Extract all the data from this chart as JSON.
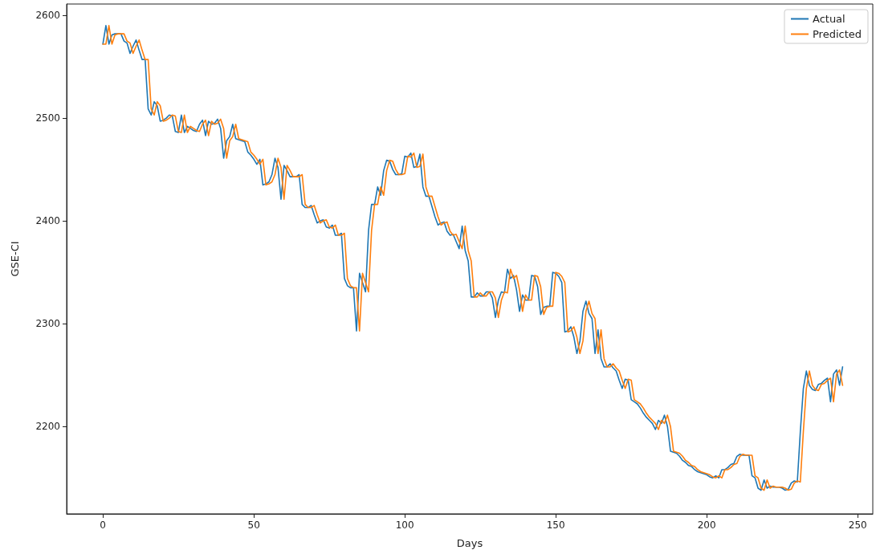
{
  "chart_data": {
    "type": "line",
    "xlabel": "Days",
    "ylabel": "GSE-CI",
    "x": [
      0,
      1,
      2,
      3,
      4,
      5,
      6,
      7,
      8,
      9,
      10,
      11,
      12,
      13,
      14,
      15,
      16,
      17,
      18,
      19,
      20,
      21,
      22,
      23,
      24,
      25,
      26,
      27,
      28,
      29,
      30,
      31,
      32,
      33,
      34,
      35,
      36,
      37,
      38,
      39,
      40,
      41,
      42,
      43,
      44,
      45,
      46,
      47,
      48,
      49,
      50,
      51,
      52,
      53,
      54,
      55,
      56,
      57,
      58,
      59,
      60,
      61,
      62,
      63,
      64,
      65,
      66,
      67,
      68,
      69,
      70,
      71,
      72,
      73,
      74,
      75,
      76,
      77,
      78,
      79,
      80,
      81,
      82,
      83,
      84,
      85,
      86,
      87,
      88,
      89,
      90,
      91,
      92,
      93,
      94,
      95,
      96,
      97,
      98,
      99,
      100,
      101,
      102,
      103,
      104,
      105,
      106,
      107,
      108,
      109,
      110,
      111,
      112,
      113,
      114,
      115,
      116,
      117,
      118,
      119,
      120,
      121,
      122,
      123,
      124,
      125,
      126,
      127,
      128,
      129,
      130,
      131,
      132,
      133,
      134,
      135,
      136,
      137,
      138,
      139,
      140,
      141,
      142,
      143,
      144,
      145,
      146,
      147,
      148,
      149,
      150,
      151,
      152,
      153,
      154,
      155,
      156,
      157,
      158,
      159,
      160,
      161,
      162,
      163,
      164,
      165,
      166,
      167,
      168,
      169,
      170,
      171,
      172,
      173,
      174,
      175,
      176,
      177,
      178,
      179,
      180,
      181,
      182,
      183,
      184,
      185,
      186,
      187,
      188,
      189,
      190,
      191,
      192,
      193,
      194,
      195,
      196,
      197,
      198,
      199,
      200,
      201,
      202,
      203,
      204,
      205,
      206,
      207,
      208,
      209,
      210,
      211,
      212,
      213,
      214,
      215,
      216,
      217,
      218,
      219,
      220,
      221,
      222,
      223,
      224,
      225,
      226,
      227,
      228,
      229,
      230,
      231,
      232,
      233,
      234,
      235,
      236,
      237,
      238,
      239,
      240,
      241,
      242,
      243,
      244,
      245
    ],
    "series": [
      {
        "name": "Actual",
        "color": "#1f77b4",
        "values": [
          2572,
          2590,
          2572,
          2581,
          2582,
          2582,
          2582,
          2575,
          2573,
          2563,
          2570,
          2576,
          2566,
          2557,
          2557,
          2509,
          2503,
          2516,
          2512,
          2497,
          2498,
          2500,
          2503,
          2502,
          2487,
          2486,
          2503,
          2486,
          2492,
          2490,
          2488,
          2487,
          2494,
          2498,
          2483,
          2497,
          2494,
          2495,
          2499,
          2490,
          2461,
          2478,
          2482,
          2494,
          2480,
          2479,
          2478,
          2477,
          2467,
          2464,
          2460,
          2455,
          2460,
          2435,
          2436,
          2438,
          2445,
          2461,
          2452,
          2421,
          2454,
          2449,
          2443,
          2443,
          2443,
          2445,
          2416,
          2413,
          2413,
          2415,
          2406,
          2398,
          2400,
          2401,
          2394,
          2393,
          2396,
          2386,
          2386,
          2388,
          2344,
          2337,
          2335,
          2335,
          2293,
          2349,
          2340,
          2331,
          2391,
          2416,
          2416,
          2433,
          2425,
          2449,
          2459,
          2458,
          2450,
          2445,
          2445,
          2446,
          2463,
          2462,
          2466,
          2452,
          2453,
          2465,
          2433,
          2424,
          2424,
          2414,
          2404,
          2396,
          2398,
          2399,
          2390,
          2386,
          2387,
          2380,
          2373,
          2395,
          2371,
          2361,
          2326,
          2326,
          2330,
          2327,
          2327,
          2331,
          2331,
          2325,
          2306,
          2323,
          2331,
          2330,
          2353,
          2344,
          2347,
          2333,
          2312,
          2328,
          2323,
          2323,
          2347,
          2346,
          2336,
          2309,
          2316,
          2317,
          2317,
          2350,
          2349,
          2346,
          2340,
          2292,
          2293,
          2297,
          2287,
          2271,
          2283,
          2312,
          2322,
          2310,
          2305,
          2271,
          2294,
          2266,
          2258,
          2258,
          2261,
          2257,
          2254,
          2245,
          2237,
          2246,
          2245,
          2226,
          2224,
          2222,
          2218,
          2213,
          2209,
          2206,
          2203,
          2197,
          2206,
          2203,
          2211,
          2200,
          2176,
          2175,
          2174,
          2171,
          2167,
          2165,
          2162,
          2161,
          2158,
          2156,
          2155,
          2154,
          2153,
          2151,
          2150,
          2152,
          2150,
          2158,
          2158,
          2160,
          2163,
          2164,
          2171,
          2173,
          2172,
          2172,
          2172,
          2152,
          2150,
          2140,
          2138,
          2148,
          2140,
          2142,
          2141,
          2141,
          2141,
          2140,
          2138,
          2139,
          2145,
          2147,
          2146,
          2195,
          2237,
          2254,
          2240,
          2236,
          2235,
          2241,
          2242,
          2245,
          2247,
          2224,
          2251,
          2255,
          2240,
          2258
        ]
      },
      {
        "name": "Predicted",
        "color": "#ff7f0e",
        "values": [
          2572,
          2572,
          2590,
          2572,
          2581,
          2582,
          2582,
          2582,
          2575,
          2573,
          2563,
          2570,
          2576,
          2566,
          2557,
          2557,
          2509,
          2503,
          2516,
          2512,
          2497,
          2498,
          2500,
          2503,
          2502,
          2487,
          2486,
          2503,
          2486,
          2492,
          2490,
          2488,
          2487,
          2494,
          2498,
          2483,
          2497,
          2494,
          2495,
          2499,
          2490,
          2461,
          2478,
          2482,
          2494,
          2480,
          2479,
          2478,
          2477,
          2467,
          2464,
          2460,
          2455,
          2460,
          2435,
          2436,
          2438,
          2445,
          2461,
          2452,
          2421,
          2454,
          2449,
          2443,
          2443,
          2443,
          2445,
          2416,
          2413,
          2413,
          2415,
          2406,
          2398,
          2400,
          2401,
          2394,
          2393,
          2396,
          2386,
          2386,
          2388,
          2344,
          2337,
          2335,
          2335,
          2293,
          2349,
          2340,
          2331,
          2391,
          2416,
          2416,
          2433,
          2425,
          2449,
          2459,
          2458,
          2450,
          2445,
          2445,
          2446,
          2463,
          2462,
          2466,
          2452,
          2453,
          2465,
          2433,
          2424,
          2424,
          2414,
          2404,
          2396,
          2398,
          2399,
          2390,
          2386,
          2387,
          2380,
          2373,
          2395,
          2371,
          2361,
          2326,
          2326,
          2330,
          2327,
          2327,
          2331,
          2331,
          2325,
          2306,
          2323,
          2331,
          2330,
          2353,
          2344,
          2347,
          2333,
          2312,
          2328,
          2323,
          2323,
          2347,
          2346,
          2336,
          2309,
          2316,
          2317,
          2317,
          2350,
          2349,
          2346,
          2340,
          2292,
          2293,
          2297,
          2287,
          2271,
          2283,
          2312,
          2322,
          2310,
          2305,
          2271,
          2294,
          2266,
          2258,
          2258,
          2261,
          2257,
          2254,
          2245,
          2237,
          2246,
          2245,
          2226,
          2224,
          2222,
          2218,
          2213,
          2209,
          2206,
          2203,
          2197,
          2206,
          2203,
          2211,
          2200,
          2176,
          2175,
          2174,
          2171,
          2167,
          2165,
          2162,
          2161,
          2158,
          2156,
          2155,
          2154,
          2153,
          2151,
          2150,
          2152,
          2150,
          2158,
          2158,
          2160,
          2163,
          2164,
          2171,
          2173,
          2172,
          2172,
          2172,
          2152,
          2150,
          2140,
          2138,
          2148,
          2140,
          2142,
          2141,
          2141,
          2141,
          2140,
          2138,
          2139,
          2145,
          2147,
          2146,
          2195,
          2237,
          2254,
          2240,
          2236,
          2235,
          2241,
          2242,
          2245,
          2247,
          2224,
          2251,
          2255,
          2240
        ]
      }
    ],
    "xlim": [
      -12,
      255
    ],
    "xticks": [
      0,
      50,
      100,
      150,
      200,
      250
    ],
    "ylim": [
      2115,
      2611
    ],
    "yticks": [
      2200,
      2300,
      2400,
      2500,
      2600
    ],
    "grid": false,
    "legend": "top right",
    "marker": "none",
    "line_style": "solid"
  }
}
